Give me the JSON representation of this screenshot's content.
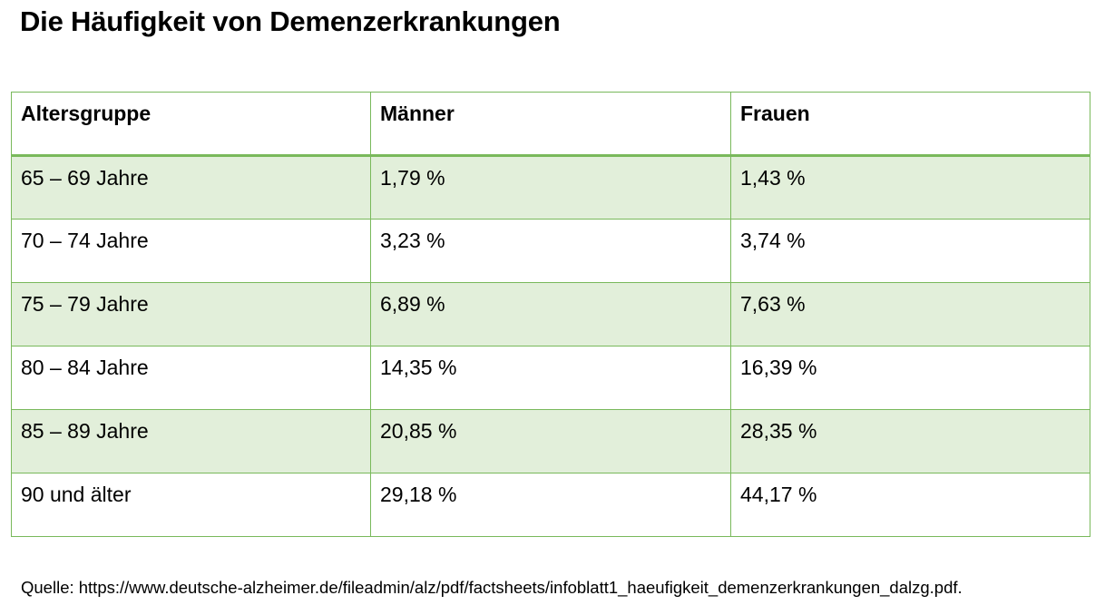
{
  "title": "Die Häufigkeit von Demenzerkrankungen",
  "table": {
    "headers": [
      "Altersgruppe",
      "Männer",
      "Frauen"
    ],
    "rows": [
      [
        "65 – 69 Jahre",
        "1,79 %",
        "1,43 %"
      ],
      [
        "70 – 74 Jahre",
        "3,23 %",
        "3,74 %"
      ],
      [
        "75 – 79 Jahre",
        "6,89 %",
        "7,63 %"
      ],
      [
        "80 – 84 Jahre",
        "14,35 %",
        "16,39 %"
      ],
      [
        "85 – 89 Jahre",
        "20,85 %",
        "28,35 %"
      ],
      [
        "90 und älter",
        "29,18 %",
        "44,17 %"
      ]
    ]
  },
  "source": "Quelle: https://www.deutsche-alzheimer.de/fileadmin/alz/pdf/factsheets/infoblatt1_haeufigkeit_demenzerkrankungen_dalzg.pdf.",
  "colors": {
    "border": "#79b95b",
    "row_shade": "#e2efda"
  }
}
